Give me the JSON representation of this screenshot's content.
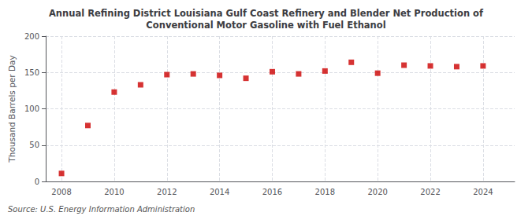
{
  "chart_data": {
    "type": "scatter",
    "title": "Annual Refining District Louisiana Gulf Coast Refinery and Blender Net Production of\nConventional Motor Gasoline with Fuel Ethanol",
    "ylabel": "Thousand Barrels per Day",
    "annotations": [
      "Source: U.S. Energy Information Administration"
    ],
    "x": [
      2008,
      2009,
      2010,
      2011,
      2012,
      2013,
      2014,
      2015,
      2016,
      2017,
      2018,
      2019,
      2020,
      2021,
      2022,
      2023,
      2024
    ],
    "values": [
      11,
      77,
      123,
      133,
      147,
      148,
      146,
      142,
      151,
      148,
      152,
      164,
      149,
      160,
      159,
      158,
      159
    ],
    "color": "#cc0000",
    "marker": "square",
    "xlim": [
      2007.4,
      2025.2
    ],
    "ylim": [
      0,
      200
    ],
    "xticks": [
      2008,
      2010,
      2012,
      2014,
      2016,
      2018,
      2020,
      2022,
      2024
    ],
    "yticks": [
      0,
      50,
      100,
      150,
      200
    ],
    "grid": true
  }
}
